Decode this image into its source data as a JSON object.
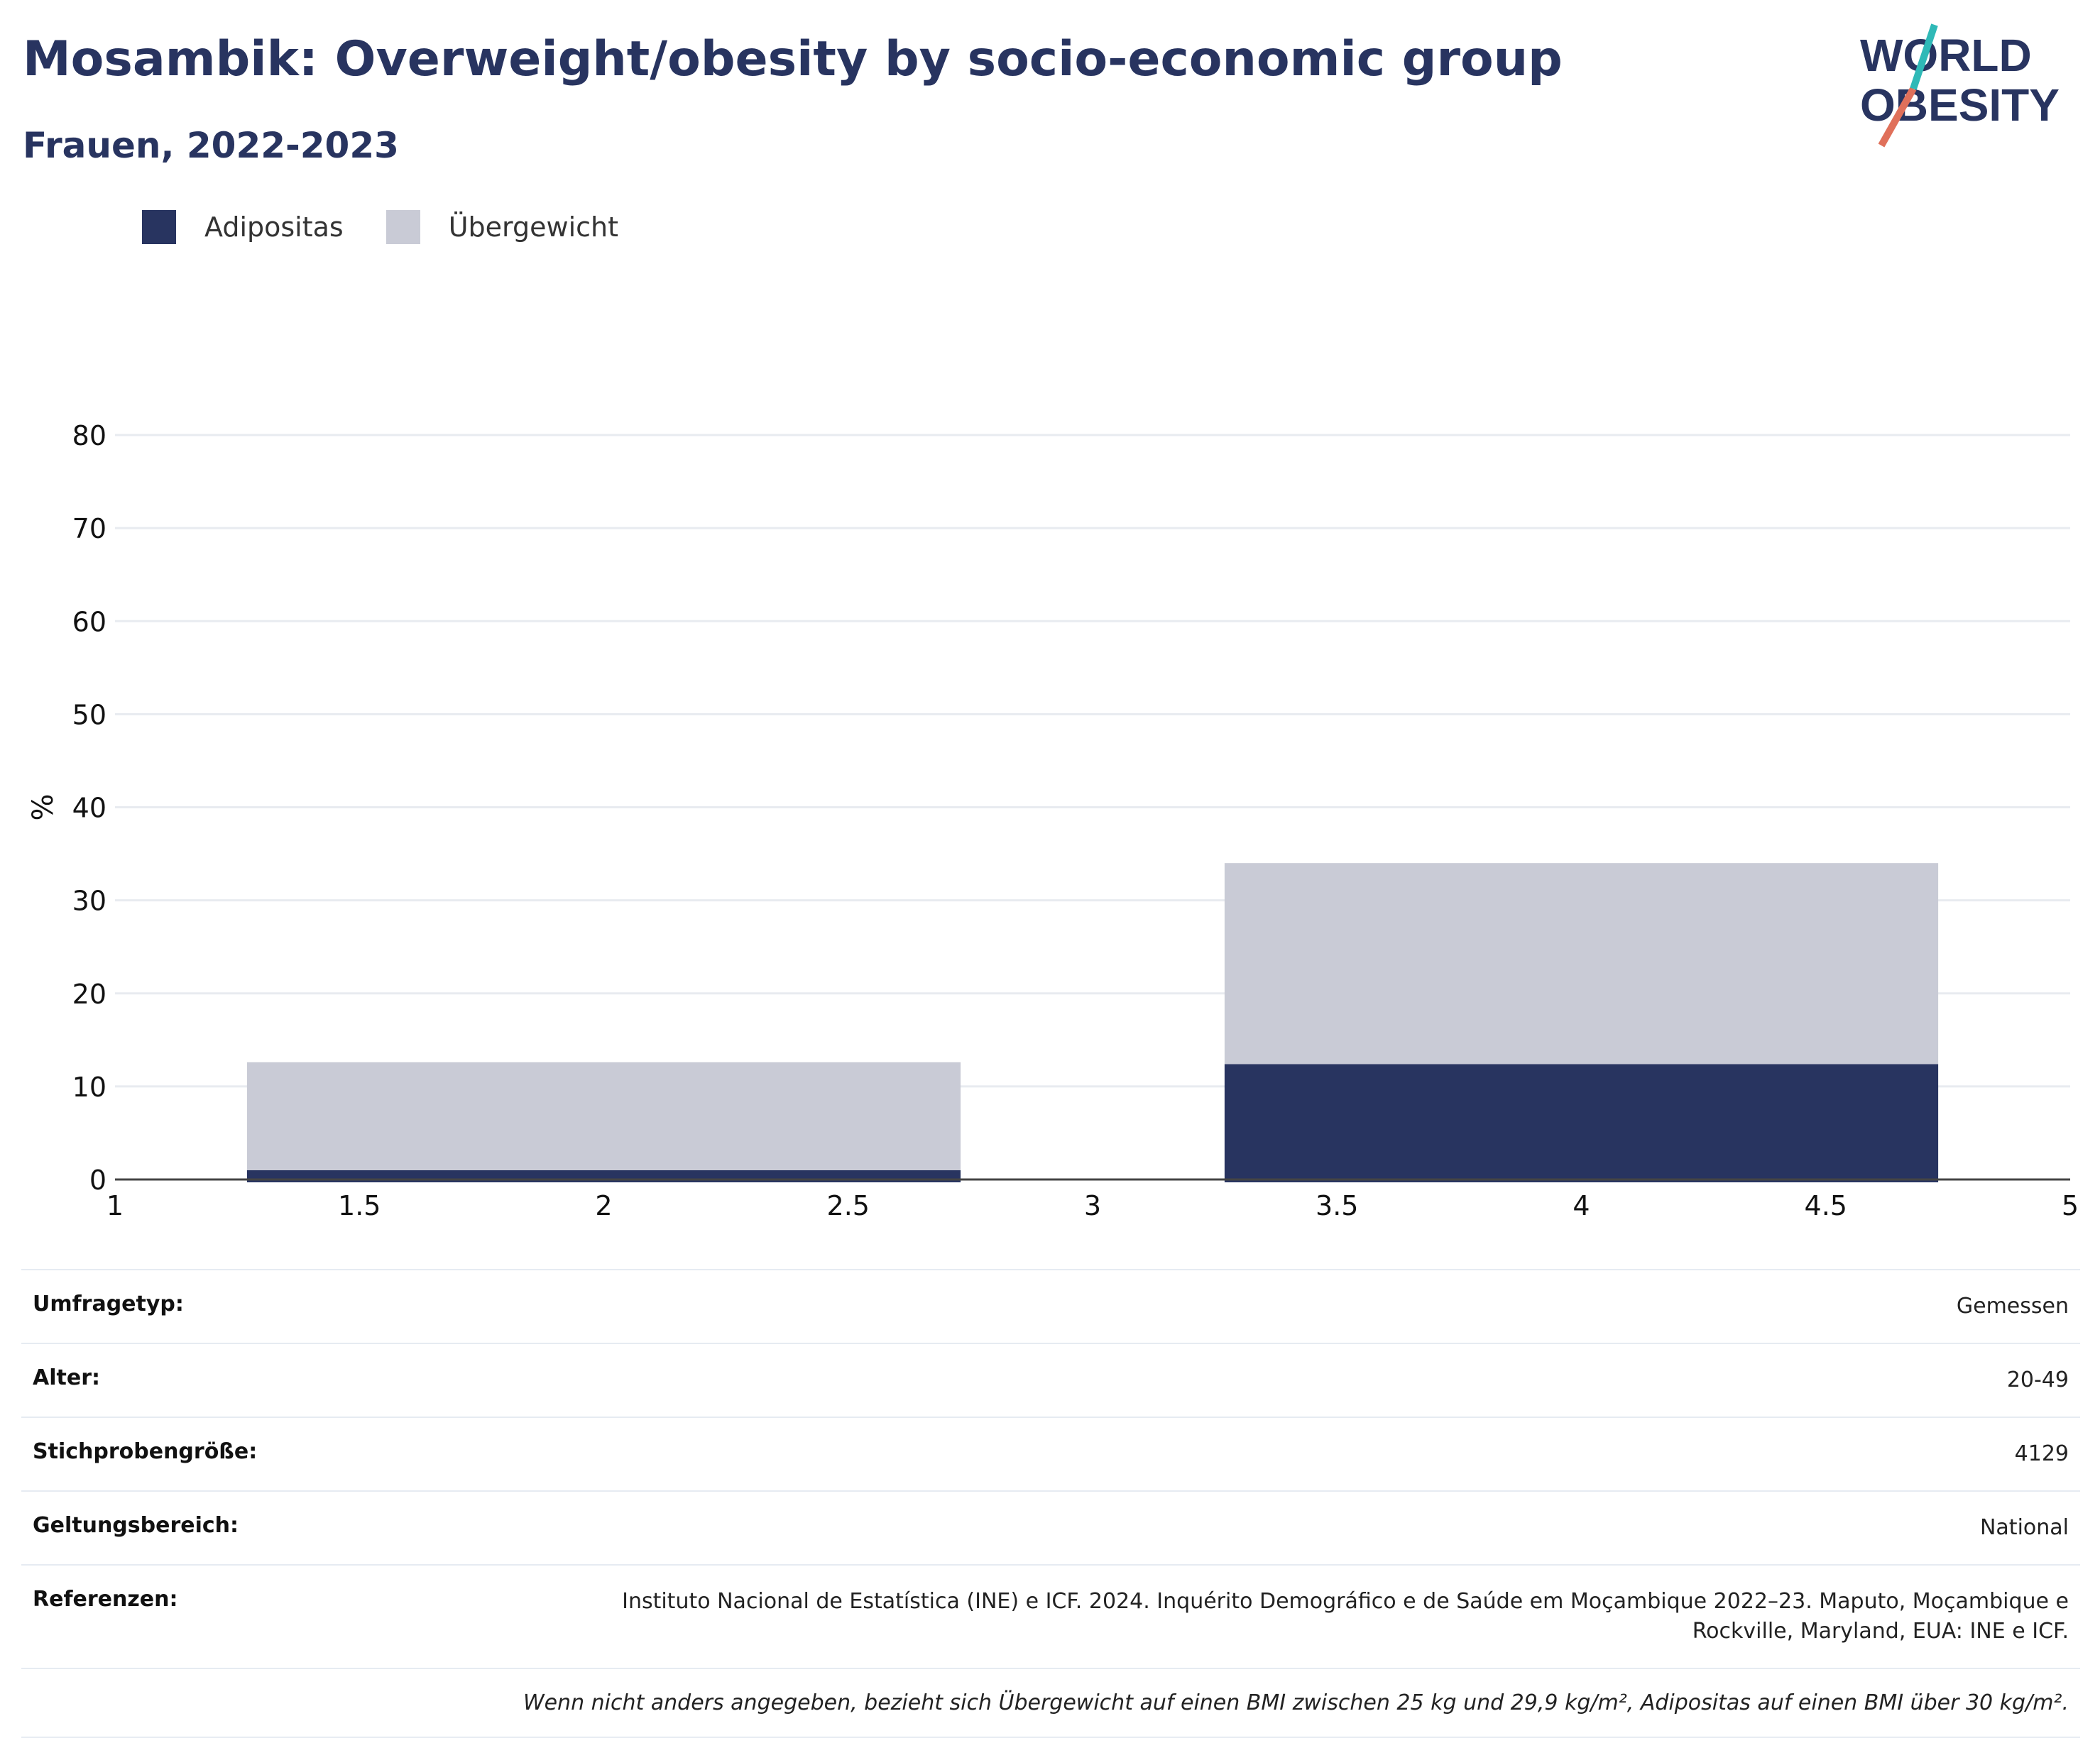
{
  "header": {
    "title": "Mosambik: Overweight/obesity by socio-economic group",
    "subtitle": "Frauen, 2022-2023"
  },
  "logo": {
    "line1": "WORLD",
    "line2": "OBESITY"
  },
  "colors": {
    "obesity": "#283460",
    "overweight": "#c9cbd6",
    "title": "#283460",
    "logo_accent_teal": "#2fb9b7",
    "logo_accent_red": "#e0705a"
  },
  "chart_data": {
    "type": "bar",
    "stacked": true,
    "legend_position": "top-left",
    "grid": true,
    "xlim": [
      1,
      5
    ],
    "ylim": [
      0,
      80
    ],
    "x_ticks": [
      "1",
      "1.5",
      "2",
      "2.5",
      "3",
      "3.5",
      "4",
      "4.5",
      "5"
    ],
    "y_ticks": [
      "0",
      "10",
      "20",
      "30",
      "40",
      "50",
      "60",
      "70",
      "80"
    ],
    "xlabel": "",
    "ylabel": "%",
    "bars": [
      {
        "x_start": 1.27,
        "x_end": 2.73,
        "obesity": 1.0,
        "overweight": 11.6
      },
      {
        "x_start": 3.27,
        "x_end": 4.73,
        "obesity": 12.4,
        "overweight": 21.6
      }
    ],
    "series": [
      {
        "name": "Adipositas",
        "values": [
          1.0,
          12.4
        ]
      },
      {
        "name": "Übergewicht",
        "values": [
          11.6,
          21.6
        ]
      }
    ]
  },
  "info": {
    "survey_type_label": "Umfragetyp:",
    "survey_type_value": "Gemessen",
    "age_label": "Alter:",
    "age_value": "20-49",
    "sample_label": "Stichprobengröße:",
    "sample_value": "4129",
    "scope_label": "Geltungsbereich:",
    "scope_value": "National",
    "references_label": "Referenzen:",
    "references_line1": "Instituto Nacional de Estatística (INE) e ICF. 2024. Inquérito Demográfico e de Saúde em Moçambique 2022–23. Maputo, Moçambique e",
    "references_line2": "Rockville, Maryland, EUA: INE e ICF.",
    "note": "Wenn nicht anders angegeben, bezieht sich Übergewicht auf einen BMI zwischen 25 kg und 29,9 kg/m², Adipositas auf einen BMI über 30 kg/m²."
  }
}
